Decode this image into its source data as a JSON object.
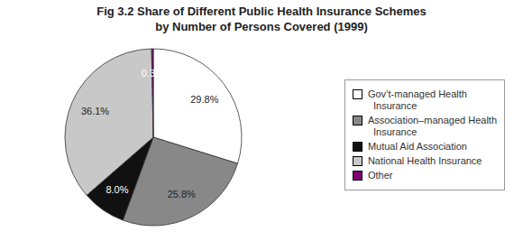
{
  "chart_data": {
    "type": "pie",
    "title": "Fig 3.2 Share of Different Public Health Insurance Schemes",
    "subtitle": "by Number of Persons Covered (1999)",
    "categories": [
      "Gov’t-managed Health\n  Insurance",
      "Association–managed Health\n  Insurance",
      "Mutual Aid Association",
      "National Health Insurance",
      "Other"
    ],
    "values": [
      29.8,
      25.8,
      8.0,
      36.1,
      0.3
    ],
    "value_labels": [
      "29.8%",
      "25.8%",
      "8.0%",
      "36.1%",
      "0.3%"
    ],
    "colors": [
      "#FFFFFF",
      "#888888",
      "#111111",
      "#C8C8C8",
      "#7B0070"
    ],
    "data_labels": true,
    "legend": "right"
  }
}
